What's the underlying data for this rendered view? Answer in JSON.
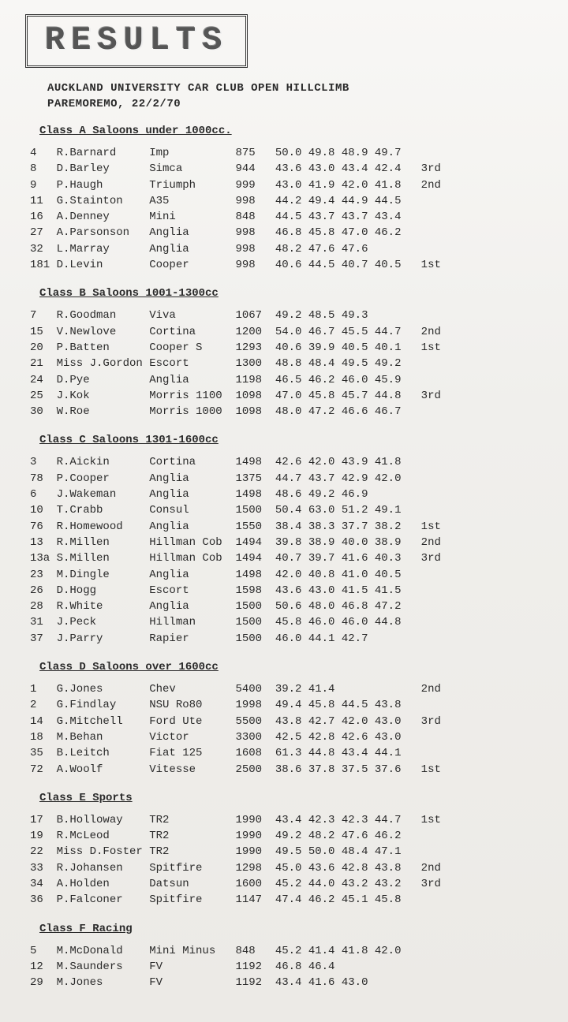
{
  "title": "RESULTS",
  "header": {
    "line1": "AUCKLAND UNIVERSITY CAR CLUB OPEN HILLCLIMB",
    "line2": "PAREMOREMO,  22/2/70"
  },
  "classes": [
    {
      "name": "Class A Saloons under 1000cc.",
      "rows": [
        {
          "num": "4",
          "driver": "R.Barnard",
          "car": "Imp",
          "cc": "875",
          "t1": "50.0",
          "t2": "49.8",
          "t3": "48.9",
          "t4": "49.7",
          "place": ""
        },
        {
          "num": "8",
          "driver": "D.Barley",
          "car": "Simca",
          "cc": "944",
          "t1": "43.6",
          "t2": "43.0",
          "t3": "43.4",
          "t4": "42.4",
          "place": "3rd"
        },
        {
          "num": "9",
          "driver": "P.Haugh",
          "car": "Triumph",
          "cc": "999",
          "t1": "43.0",
          "t2": "41.9",
          "t3": "42.0",
          "t4": "41.8",
          "place": "2nd"
        },
        {
          "num": "11",
          "driver": "G.Stainton",
          "car": "A35",
          "cc": "998",
          "t1": "44.2",
          "t2": "49.4",
          "t3": "44.9",
          "t4": "44.5",
          "place": ""
        },
        {
          "num": "16",
          "driver": "A.Denney",
          "car": "Mini",
          "cc": "848",
          "t1": "44.5",
          "t2": "43.7",
          "t3": "43.7",
          "t4": "43.4",
          "place": ""
        },
        {
          "num": "27",
          "driver": "A.Parsonson",
          "car": "Anglia",
          "cc": "998",
          "t1": "46.8",
          "t2": "45.8",
          "t3": "47.0",
          "t4": "46.2",
          "place": ""
        },
        {
          "num": "32",
          "driver": "L.Marray",
          "car": "Anglia",
          "cc": "998",
          "t1": "48.2",
          "t2": "47.6",
          "t3": "47.6",
          "t4": "",
          "place": ""
        },
        {
          "num": "181",
          "driver": "D.Levin",
          "car": "Cooper",
          "cc": "998",
          "t1": "40.6",
          "t2": "44.5",
          "t3": "40.7",
          "t4": "40.5",
          "place": "1st"
        }
      ]
    },
    {
      "name": "Class B Saloons 1001-1300cc",
      "rows": [
        {
          "num": "7",
          "driver": "R.Goodman",
          "car": "Viva",
          "cc": "1067",
          "t1": "49.2",
          "t2": "48.5",
          "t3": "49.3",
          "t4": "",
          "place": ""
        },
        {
          "num": "15",
          "driver": "V.Newlove",
          "car": "Cortina",
          "cc": "1200",
          "t1": "54.0",
          "t2": "46.7",
          "t3": "45.5",
          "t4": "44.7",
          "place": "2nd"
        },
        {
          "num": "20",
          "driver": "P.Batten",
          "car": "Cooper S",
          "cc": "1293",
          "t1": "40.6",
          "t2": "39.9",
          "t3": "40.5",
          "t4": "40.1",
          "place": "1st"
        },
        {
          "num": "21",
          "driver": "Miss J.Gordon",
          "car": "Escort",
          "cc": "1300",
          "t1": "48.8",
          "t2": "48.4",
          "t3": "49.5",
          "t4": "49.2",
          "place": ""
        },
        {
          "num": "24",
          "driver": "D.Pye",
          "car": "Anglia",
          "cc": "1198",
          "t1": "46.5",
          "t2": "46.2",
          "t3": "46.0",
          "t4": "45.9",
          "place": ""
        },
        {
          "num": "25",
          "driver": "J.Kok",
          "car": "Morris 1100",
          "cc": "1098",
          "t1": "47.0",
          "t2": "45.8",
          "t3": "45.7",
          "t4": "44.8",
          "place": "3rd"
        },
        {
          "num": "30",
          "driver": "W.Roe",
          "car": "Morris 1000",
          "cc": "1098",
          "t1": "48.0",
          "t2": "47.2",
          "t3": "46.6",
          "t4": "46.7",
          "place": ""
        }
      ]
    },
    {
      "name": "Class C Saloons 1301-1600cc",
      "rows": [
        {
          "num": "3",
          "driver": "R.Aickin",
          "car": "Cortina",
          "cc": "1498",
          "t1": "42.6",
          "t2": "42.0",
          "t3": "43.9",
          "t4": "41.8",
          "place": ""
        },
        {
          "num": "78",
          "driver": "P.Cooper",
          "car": "Anglia",
          "cc": "1375",
          "t1": "44.7",
          "t2": "43.7",
          "t3": "42.9",
          "t4": "42.0",
          "place": ""
        },
        {
          "num": "6",
          "driver": "J.Wakeman",
          "car": "Anglia",
          "cc": "1498",
          "t1": "48.6",
          "t2": "49.2",
          "t3": "46.9",
          "t4": "",
          "place": ""
        },
        {
          "num": "10",
          "driver": "T.Crabb",
          "car": "Consul",
          "cc": "1500",
          "t1": "50.4",
          "t2": "63.0",
          "t3": "51.2",
          "t4": "49.1",
          "place": ""
        },
        {
          "num": "76",
          "driver": "R.Homewood",
          "car": "Anglia",
          "cc": "1550",
          "t1": "38.4",
          "t2": "38.3",
          "t3": "37.7",
          "t4": "38.2",
          "place": "1st"
        },
        {
          "num": "13",
          "driver": "R.Millen",
          "car": "Hillman Cob",
          "cc": "1494",
          "t1": "39.8",
          "t2": "38.9",
          "t3": "40.0",
          "t4": "38.9",
          "place": "2nd"
        },
        {
          "num": "13a",
          "driver": "S.Millen",
          "car": "Hillman Cob",
          "cc": "1494",
          "t1": "40.7",
          "t2": "39.7",
          "t3": "41.6",
          "t4": "40.3",
          "place": "3rd"
        },
        {
          "num": "23",
          "driver": "M.Dingle",
          "car": "Anglia",
          "cc": "1498",
          "t1": "42.0",
          "t2": "40.8",
          "t3": "41.0",
          "t4": "40.5",
          "place": ""
        },
        {
          "num": "26",
          "driver": "D.Hogg",
          "car": "Escort",
          "cc": "1598",
          "t1": "43.6",
          "t2": "43.0",
          "t3": "41.5",
          "t4": "41.5",
          "place": ""
        },
        {
          "num": "28",
          "driver": "R.White",
          "car": "Anglia",
          "cc": "1500",
          "t1": "50.6",
          "t2": "48.0",
          "t3": "46.8",
          "t4": "47.2",
          "place": ""
        },
        {
          "num": "31",
          "driver": "J.Peck",
          "car": "Hillman",
          "cc": "1500",
          "t1": "45.8",
          "t2": "46.0",
          "t3": "46.0",
          "t4": "44.8",
          "place": ""
        },
        {
          "num": "37",
          "driver": "J.Parry",
          "car": "Rapier",
          "cc": "1500",
          "t1": "46.0",
          "t2": "44.1",
          "t3": "42.7",
          "t4": "",
          "place": ""
        }
      ]
    },
    {
      "name": "Class D Saloons over 1600cc",
      "rows": [
        {
          "num": "1",
          "driver": "G.Jones",
          "car": "Chev",
          "cc": "5400",
          "t1": "39.2",
          "t2": "41.4",
          "t3": "",
          "t4": "",
          "place": "2nd"
        },
        {
          "num": "2",
          "driver": "G.Findlay",
          "car": "NSU Ro80",
          "cc": "1998",
          "t1": "49.4",
          "t2": "45.8",
          "t3": "44.5",
          "t4": "43.8",
          "place": ""
        },
        {
          "num": "14",
          "driver": "G.Mitchell",
          "car": "Ford Ute",
          "cc": "5500",
          "t1": "43.8",
          "t2": "42.7",
          "t3": "42.0",
          "t4": "43.0",
          "place": "3rd"
        },
        {
          "num": "18",
          "driver": "M.Behan",
          "car": "Victor",
          "cc": "3300",
          "t1": "42.5",
          "t2": "42.8",
          "t3": "42.6",
          "t4": "43.0",
          "place": ""
        },
        {
          "num": "35",
          "driver": "B.Leitch",
          "car": "Fiat 125",
          "cc": "1608",
          "t1": "61.3",
          "t2": "44.8",
          "t3": "43.4",
          "t4": "44.1",
          "place": ""
        },
        {
          "num": "72",
          "driver": "A.Woolf",
          "car": "Vitesse",
          "cc": "2500",
          "t1": "38.6",
          "t2": "37.8",
          "t3": "37.5",
          "t4": "37.6",
          "place": "1st"
        }
      ]
    },
    {
      "name": "Class E Sports",
      "rows": [
        {
          "num": "17",
          "driver": "B.Holloway",
          "car": "TR2",
          "cc": "1990",
          "t1": "43.4",
          "t2": "42.3",
          "t3": "42.3",
          "t4": "44.7",
          "place": "1st"
        },
        {
          "num": "19",
          "driver": "R.McLeod",
          "car": "TR2",
          "cc": "1990",
          "t1": "49.2",
          "t2": "48.2",
          "t3": "47.6",
          "t4": "46.2",
          "place": ""
        },
        {
          "num": "22",
          "driver": "Miss D.Foster",
          "car": "TR2",
          "cc": "1990",
          "t1": "49.5",
          "t2": "50.0",
          "t3": "48.4",
          "t4": "47.1",
          "place": ""
        },
        {
          "num": "33",
          "driver": "R.Johansen",
          "car": "Spitfire",
          "cc": "1298",
          "t1": "45.0",
          "t2": "43.6",
          "t3": "42.8",
          "t4": "43.8",
          "place": "2nd"
        },
        {
          "num": "34",
          "driver": "A.Holden",
          "car": "Datsun",
          "cc": "1600",
          "t1": "45.2",
          "t2": "44.0",
          "t3": "43.2",
          "t4": "43.2",
          "place": "3rd"
        },
        {
          "num": "36",
          "driver": "P.Falconer",
          "car": "Spitfire",
          "cc": "1147",
          "t1": "47.4",
          "t2": "46.2",
          "t3": "45.1",
          "t4": "45.8",
          "place": ""
        }
      ]
    },
    {
      "name": "Class F Racing",
      "rows": [
        {
          "num": "5",
          "driver": "M.McDonald",
          "car": "Mini Minus",
          "cc": "848",
          "t1": "45.2",
          "t2": "41.4",
          "t3": "41.8",
          "t4": "42.0",
          "place": ""
        },
        {
          "num": "12",
          "driver": "M.Saunders",
          "car": "FV",
          "cc": "1192",
          "t1": "46.8",
          "t2": "46.4",
          "t3": "",
          "t4": "",
          "place": ""
        },
        {
          "num": "29",
          "driver": "M.Jones",
          "car": "FV",
          "cc": "1192",
          "t1": "43.4",
          "t2": "41.6",
          "t3": "43.0",
          "t4": "",
          "place": ""
        }
      ]
    }
  ],
  "layout": {
    "col_num": 4,
    "col_driver": 14,
    "col_car": 13,
    "col_cc": 5,
    "col_time": 5,
    "font_family": "Courier New",
    "font_size_pt": 11,
    "background": "#f4f3f1",
    "text_color": "#2a2a2a"
  }
}
